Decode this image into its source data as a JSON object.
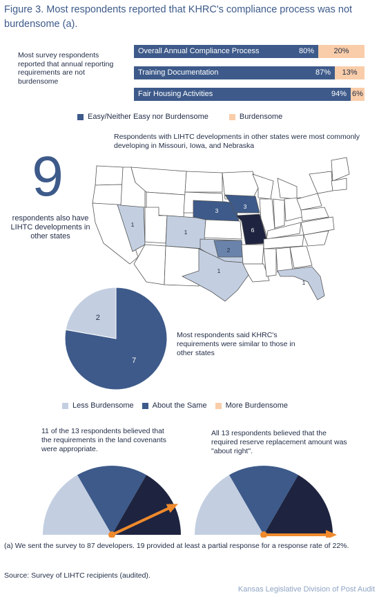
{
  "figure_title": "Figure 3. Most respondents reported that KHRC's compliance process was not burdensome (a).",
  "colors": {
    "easy": "#3d5a8a",
    "burdensome": "#f9cda9",
    "less": "#c3cfe1",
    "same": "#3d5a8a",
    "more": "#f9cda9",
    "dark": "#1e2440",
    "arrow": "#ef8a2c",
    "title": "#3d5a8a"
  },
  "bar_section": {
    "intro_text": "Most survey respondents reported that annual reporting requirements are not burdensome",
    "legend": [
      {
        "label": "Easy/Neither Easy nor Burdensome",
        "color_key": "easy"
      },
      {
        "label": "Burdensome",
        "color_key": "burdensome"
      }
    ]
  },
  "map_section": {
    "caption": "Respondents with LIHTC developments in other states were most commonly developing in Missouri, Iowa, and Nebraska",
    "big_number": "9",
    "big_number_text": "respondents also have LIHTC developments in other states"
  },
  "pie_section": {
    "text": "Most respondents said KHRC's requirements were similar to those in other states",
    "legend": [
      {
        "label": "Less Burdensome",
        "color_key": "less"
      },
      {
        "label": "About the Same",
        "color_key": "same"
      },
      {
        "label": "More Burdensome",
        "color_key": "more"
      }
    ]
  },
  "gauges": [
    {
      "text": "11 of the 13 respondents believed that the requirements in the land covenants were appropriate.",
      "needle_angle_deg": 25
    },
    {
      "text": "All 13 respondents believed that the required reserve replacement amount was \"about right\".",
      "needle_angle_deg": 0
    }
  ],
  "footnote": "(a) We sent the survey to 87 developers. 19 provided at least a partial response for a response rate of 22%.",
  "source": "Source:  Survey of LIHTC recipients (audited).",
  "credit": "Kansas Legislative Division of Post Audit",
  "chart_data": [
    {
      "type": "bar",
      "orientation": "horizontal",
      "stacked": true,
      "categories": [
        "Overall Annual Compliance Process",
        "Training Documentation",
        "Fair Housing Activities"
      ],
      "series": [
        {
          "name": "Easy/Neither Easy nor Burdensome",
          "values": [
            80,
            87,
            94
          ],
          "labels": [
            "80%",
            "87%",
            "94%"
          ]
        },
        {
          "name": "Burdensome",
          "values": [
            20,
            13,
            6
          ],
          "labels": [
            "20%",
            "13%",
            "6%"
          ]
        }
      ],
      "ylim": [
        0,
        100
      ]
    },
    {
      "type": "map",
      "values": [
        {
          "state": "Nevada",
          "count": 1
        },
        {
          "state": "Colorado",
          "count": 1
        },
        {
          "state": "Nebraska",
          "count": 3
        },
        {
          "state": "Iowa",
          "count": 3
        },
        {
          "state": "Missouri",
          "count": 6
        },
        {
          "state": "Oklahoma",
          "count": 2
        },
        {
          "state": "Texas",
          "count": 1
        },
        {
          "state": "Florida",
          "count": 1
        }
      ]
    },
    {
      "type": "pie",
      "categories": [
        "Less Burdensome",
        "About the Same",
        "More Burdensome"
      ],
      "values": [
        2,
        7,
        0
      ]
    }
  ]
}
